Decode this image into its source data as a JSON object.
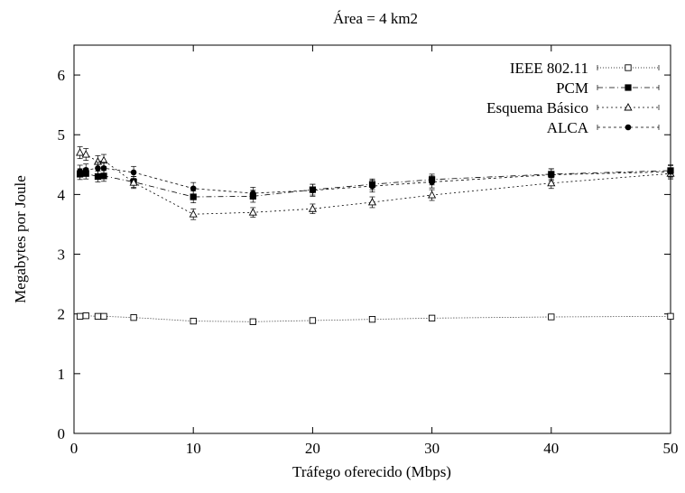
{
  "chart_data": {
    "type": "line",
    "title": "Área = 4 km2",
    "xlabel": "Tráfego oferecido (Mbps)",
    "ylabel": "Megabytes por Joule",
    "xlim": [
      0,
      50
    ],
    "ylim": [
      0,
      6.5
    ],
    "xticks": [
      0,
      10,
      20,
      30,
      40,
      50
    ],
    "yticks": [
      0,
      1,
      2,
      3,
      4,
      5,
      6
    ],
    "grid": false,
    "legend_position": "top-right",
    "x": [
      0.5,
      1,
      2,
      2.5,
      5,
      10,
      15,
      20,
      25,
      30,
      40,
      50
    ],
    "series": [
      {
        "name": "IEEE 802.11",
        "marker": "open-square",
        "dash": "1,2",
        "values": [
          1.96,
          1.97,
          1.96,
          1.96,
          1.94,
          1.88,
          1.87,
          1.89,
          1.91,
          1.93,
          1.95,
          1.96
        ],
        "err": [
          0.04,
          0.04,
          0.04,
          0.04,
          0.04,
          0.04,
          0.04,
          0.04,
          0.04,
          0.04,
          0.04,
          0.04
        ]
      },
      {
        "name": "PCM",
        "marker": "filled-square",
        "dash": "6,3,1,3",
        "values": [
          4.34,
          4.35,
          4.3,
          4.31,
          4.21,
          3.96,
          3.97,
          4.08,
          4.17,
          4.25,
          4.34,
          4.4
        ],
        "err": [
          0.09,
          0.09,
          0.09,
          0.09,
          0.09,
          0.1,
          0.1,
          0.09,
          0.09,
          0.09,
          0.09,
          0.1
        ]
      },
      {
        "name": "Esquema Básico",
        "marker": "open-triangle",
        "dash": "2,3",
        "values": [
          4.7,
          4.67,
          4.55,
          4.57,
          4.2,
          3.67,
          3.7,
          3.76,
          3.87,
          3.99,
          4.19,
          4.35
        ],
        "err": [
          0.1,
          0.1,
          0.1,
          0.1,
          0.1,
          0.09,
          0.08,
          0.08,
          0.09,
          0.09,
          0.09,
          0.09
        ]
      },
      {
        "name": "ALCA",
        "marker": "filled-circle",
        "dash": "3,3",
        "values": [
          4.39,
          4.41,
          4.44,
          4.44,
          4.37,
          4.1,
          4.02,
          4.07,
          4.14,
          4.21,
          4.33,
          4.38
        ],
        "err": [
          0.1,
          0.1,
          0.1,
          0.1,
          0.1,
          0.1,
          0.1,
          0.1,
          0.1,
          0.1,
          0.1,
          0.1
        ]
      }
    ]
  }
}
